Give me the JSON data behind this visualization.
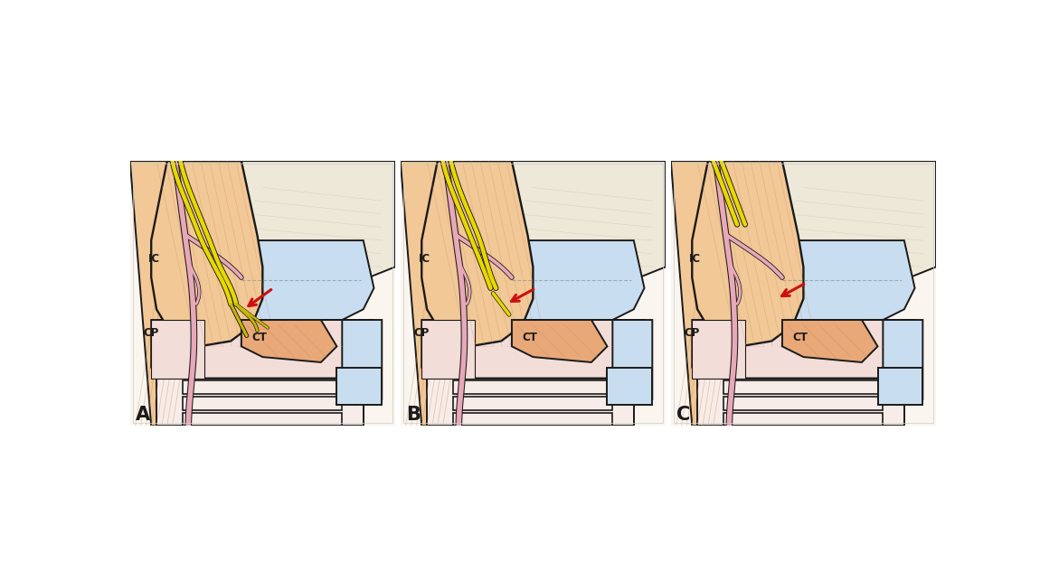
{
  "fig_width": 11.5,
  "fig_height": 6.43,
  "background_color": "#ffffff",
  "skin_color": "#f2c896",
  "skin_light": "#f5d8b0",
  "muscle_color": "#e8a878",
  "muscle_dark": "#d4906a",
  "thyroid_color": "#c8ddf0",
  "thyroid_cartilage_color": "#f0ebe0",
  "bone_color": "#ede8d8",
  "trachea_color": "#f2ddd8",
  "trachea_light": "#f8ece8",
  "nerve_yellow": "#e8d800",
  "nerve_yellow_dark": "#c8b800",
  "nerve_pink": "#e8a8b8",
  "nerve_pink_dark": "#c88898",
  "red_arrow": "#cc1010",
  "black": "#1a1a1a",
  "gray_line": "#888888",
  "striation_color": "#c09060",
  "panel_labels": [
    "A",
    "B",
    "C"
  ],
  "ic_label": "IC",
  "cp_label": "CP",
  "ct_label": "CT"
}
